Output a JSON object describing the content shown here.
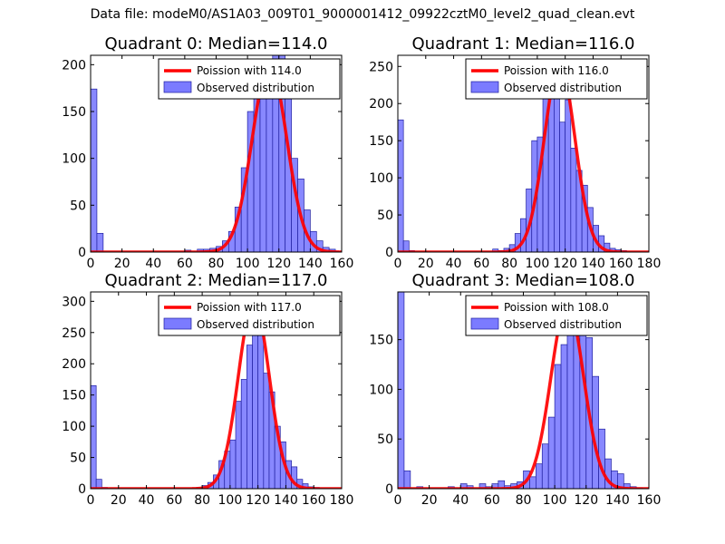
{
  "figure_title": "Data file: modeM0/AS1A03_009T01_9000001412_09922cztM0_level2_quad_clean.evt",
  "colors": {
    "bar": "#7b7bff",
    "bar_edge": "#2020a0",
    "curve": "#ff0000"
  },
  "chart_data": [
    {
      "type": "bar",
      "title": "Quadrant 0: Median=114.0",
      "xlim": [
        0,
        160
      ],
      "ylim": [
        0,
        210
      ],
      "xticks": [
        0,
        20,
        40,
        60,
        80,
        100,
        120,
        140,
        160
      ],
      "yticks": [
        0,
        50,
        100,
        150,
        200
      ],
      "legend": [
        "Poission with 114.0",
        "Observed distribution"
      ],
      "bin_width": 4,
      "bins": [
        0,
        4,
        60,
        68,
        72,
        76,
        80,
        84,
        88,
        92,
        96,
        100,
        104,
        108,
        112,
        116,
        120,
        124,
        128,
        132,
        136,
        140,
        144,
        148,
        152,
        156
      ],
      "values": [
        174,
        20,
        2,
        3,
        3,
        4,
        6,
        12,
        22,
        48,
        90,
        150,
        180,
        205,
        205,
        210,
        210,
        170,
        100,
        78,
        45,
        22,
        12,
        5,
        3,
        1
      ],
      "poisson": {
        "mean": 114,
        "amplitude": 200,
        "sigma": 11
      }
    },
    {
      "type": "bar",
      "title": "Quadrant 1: Median=116.0",
      "xlim": [
        0,
        180
      ],
      "ylim": [
        0,
        265
      ],
      "xticks": [
        0,
        20,
        40,
        60,
        80,
        100,
        120,
        140,
        160,
        180
      ],
      "yticks": [
        0,
        50,
        100,
        150,
        200,
        250
      ],
      "legend": [
        "Poission with 116.0",
        "Observed distribution"
      ],
      "bin_width": 4,
      "bins": [
        0,
        4,
        8,
        68,
        72,
        76,
        80,
        84,
        88,
        92,
        96,
        100,
        104,
        108,
        112,
        116,
        120,
        124,
        128,
        132,
        136,
        140,
        144,
        148,
        152,
        156,
        160
      ],
      "values": [
        178,
        15,
        2,
        4,
        2,
        5,
        10,
        25,
        45,
        85,
        150,
        155,
        220,
        255,
        230,
        175,
        205,
        140,
        110,
        90,
        60,
        36,
        22,
        12,
        5,
        3,
        2
      ],
      "poisson": {
        "mean": 116,
        "amplitude": 253,
        "sigma": 11
      }
    },
    {
      "type": "bar",
      "title": "Quadrant 2: Median=117.0",
      "xlim": [
        0,
        180
      ],
      "ylim": [
        0,
        315
      ],
      "xticks": [
        0,
        20,
        40,
        60,
        80,
        100,
        120,
        140,
        160,
        180
      ],
      "yticks": [
        0,
        50,
        100,
        150,
        200,
        250,
        300
      ],
      "legend": [
        "Poission with 117.0",
        "Observed distribution"
      ],
      "bin_width": 4,
      "bins": [
        0,
        4,
        8,
        76,
        80,
        84,
        88,
        92,
        96,
        100,
        104,
        108,
        112,
        116,
        120,
        124,
        128,
        132,
        136,
        140,
        144,
        148,
        152,
        156,
        160
      ],
      "values": [
        165,
        15,
        2,
        2,
        5,
        10,
        22,
        45,
        60,
        78,
        140,
        175,
        230,
        290,
        265,
        185,
        155,
        100,
        75,
        45,
        35,
        15,
        8,
        3,
        2
      ],
      "poisson": {
        "mean": 117,
        "amplitude": 300,
        "sigma": 11
      }
    },
    {
      "type": "bar",
      "title": "Quadrant 3: Median=108.0",
      "xlim": [
        0,
        160
      ],
      "ylim": [
        0,
        198
      ],
      "xticks": [
        0,
        20,
        40,
        60,
        80,
        100,
        120,
        140,
        160
      ],
      "yticks": [
        0,
        50,
        100,
        150
      ],
      "legend": [
        "Poission with 108.0",
        "Observed distribution"
      ],
      "bin_width": 4,
      "bins": [
        0,
        4,
        12,
        32,
        40,
        44,
        52,
        56,
        60,
        64,
        68,
        72,
        76,
        80,
        84,
        88,
        92,
        96,
        100,
        104,
        108,
        112,
        116,
        120,
        124,
        128,
        132,
        136,
        140,
        144,
        148,
        152
      ],
      "values": [
        198,
        18,
        2,
        2,
        5,
        3,
        5,
        2,
        5,
        8,
        3,
        5,
        7,
        18,
        12,
        25,
        45,
        72,
        125,
        145,
        180,
        178,
        160,
        152,
        113,
        60,
        30,
        18,
        15,
        5,
        2,
        1
      ],
      "poisson": {
        "mean": 108,
        "amplitude": 186,
        "sigma": 10.4
      }
    }
  ]
}
